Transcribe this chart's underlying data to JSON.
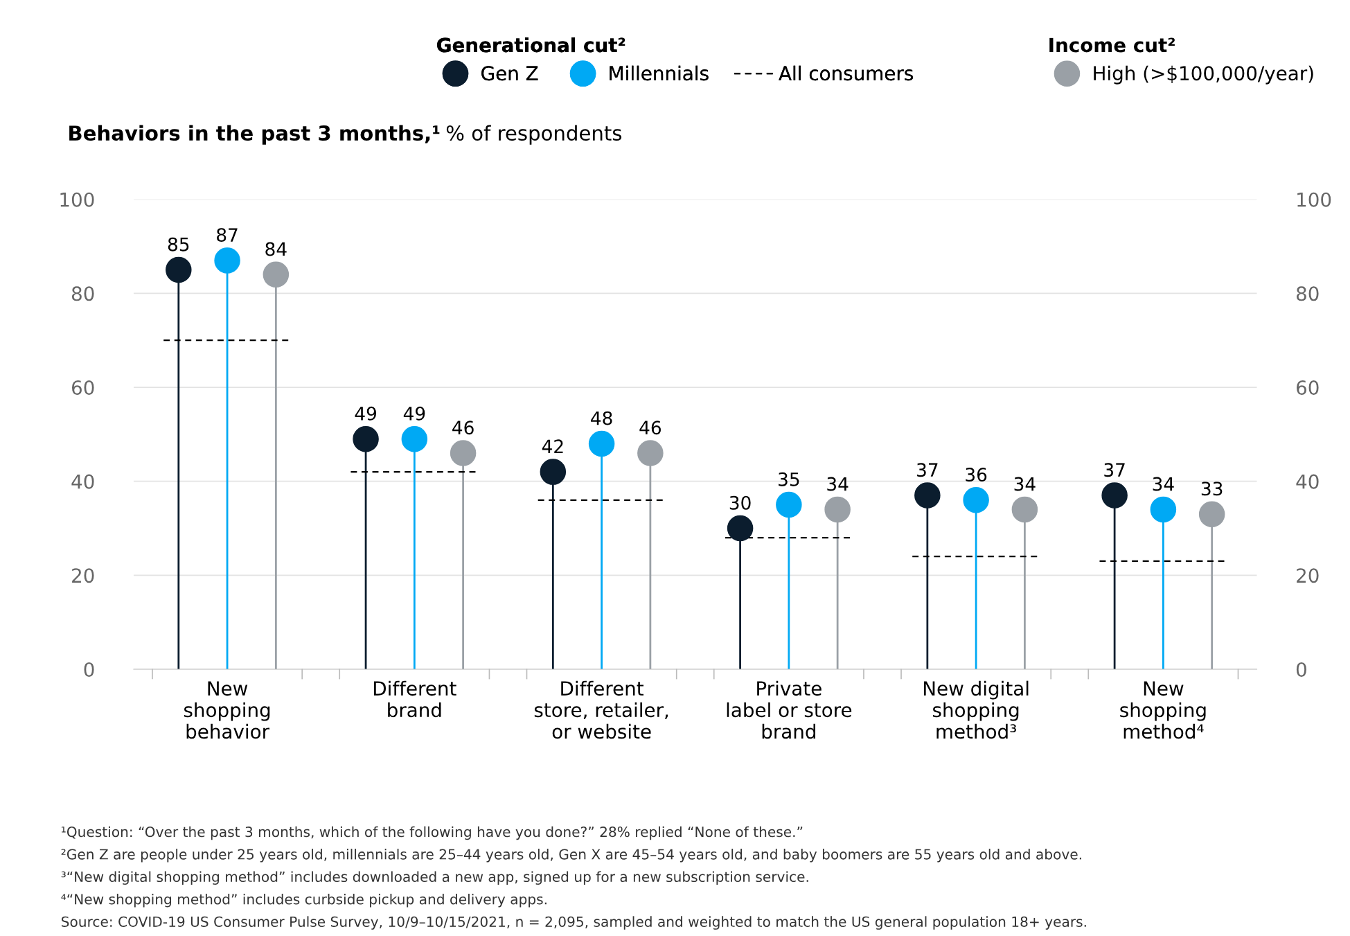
{
  "chart_data": {
    "type": "lollipop",
    "title": "Behaviors in the past 3 months,¹",
    "subtitle": "% of respondents",
    "legend_title": "Generational cut²",
    "categories": [
      "New\nshopping\nbehavior",
      "Different\nbrand",
      "Different\nstore, retailer,\nor website",
      "Private\nlabel or store\nbrand",
      "New digital\nshopping\nmethod³",
      "New\nshopping\nmethod⁴"
    ],
    "series": [
      {
        "name": "Gen Z",
        "color": "#0b1d2e",
        "values": [
          85,
          49,
          42,
          30,
          37,
          37
        ]
      },
      {
        "name": "Millennials",
        "color": "#00a9f4",
        "values": [
          87,
          49,
          48,
          35,
          36,
          34
        ]
      },
      {
        "name": "High (>$100,000/year)",
        "color": "#9aa0a6",
        "values": [
          84,
          46,
          46,
          34,
          34,
          33
        ]
      }
    ],
    "data_labels": true,
    "marker": "circle",
    "legend": "top",
    "grid": "y",
    "ylim": [
      0,
      100
    ],
    "yticks": [
      0,
      20,
      40,
      60,
      80,
      100
    ],
    "y2lim": [
      0,
      100
    ],
    "y2ticks": [
      0,
      20,
      40,
      60,
      80,
      100
    ],
    "ref_lines": [
      {
        "axis": "y",
        "value": 70,
        "label": "All consumers",
        "color": "#000000",
        "line_style": "dashed"
      },
      {
        "axis": "y",
        "value": 42,
        "color": "#000000",
        "line_style": "dashed"
      },
      {
        "axis": "y",
        "value": 36,
        "color": "#000000",
        "line_style": "dashed"
      },
      {
        "axis": "y",
        "value": 28,
        "color": "#000000",
        "line_style": "dashed"
      },
      {
        "axis": "y",
        "value": 24,
        "color": "#000000",
        "line_style": "dashed"
      },
      {
        "axis": "y",
        "value": 23,
        "color": "#000000",
        "line_style": "dashed"
      }
    ],
    "annotations": [
      "Income cut²",
      "¹Question: “Over the past 3 months, which of the following have you done?” 28% replied “None of these.”",
      "²Gen Z are people under 25 years old, millennials are 25–44 years old, Gen X are 45–54 years old, and baby boomers are 55 years old and above.",
      "³“New digital shopping method” includes downloaded a new app, signed up for a new subscription service.",
      "⁴“New shopping method” includes curbside pickup and delivery apps.",
      "Source: COVID-19 US Consumer Pulse Survey, 10/9–10/15/2021, n = 2,095, sampled and weighted to match the US general population 18+ years."
    ]
  }
}
